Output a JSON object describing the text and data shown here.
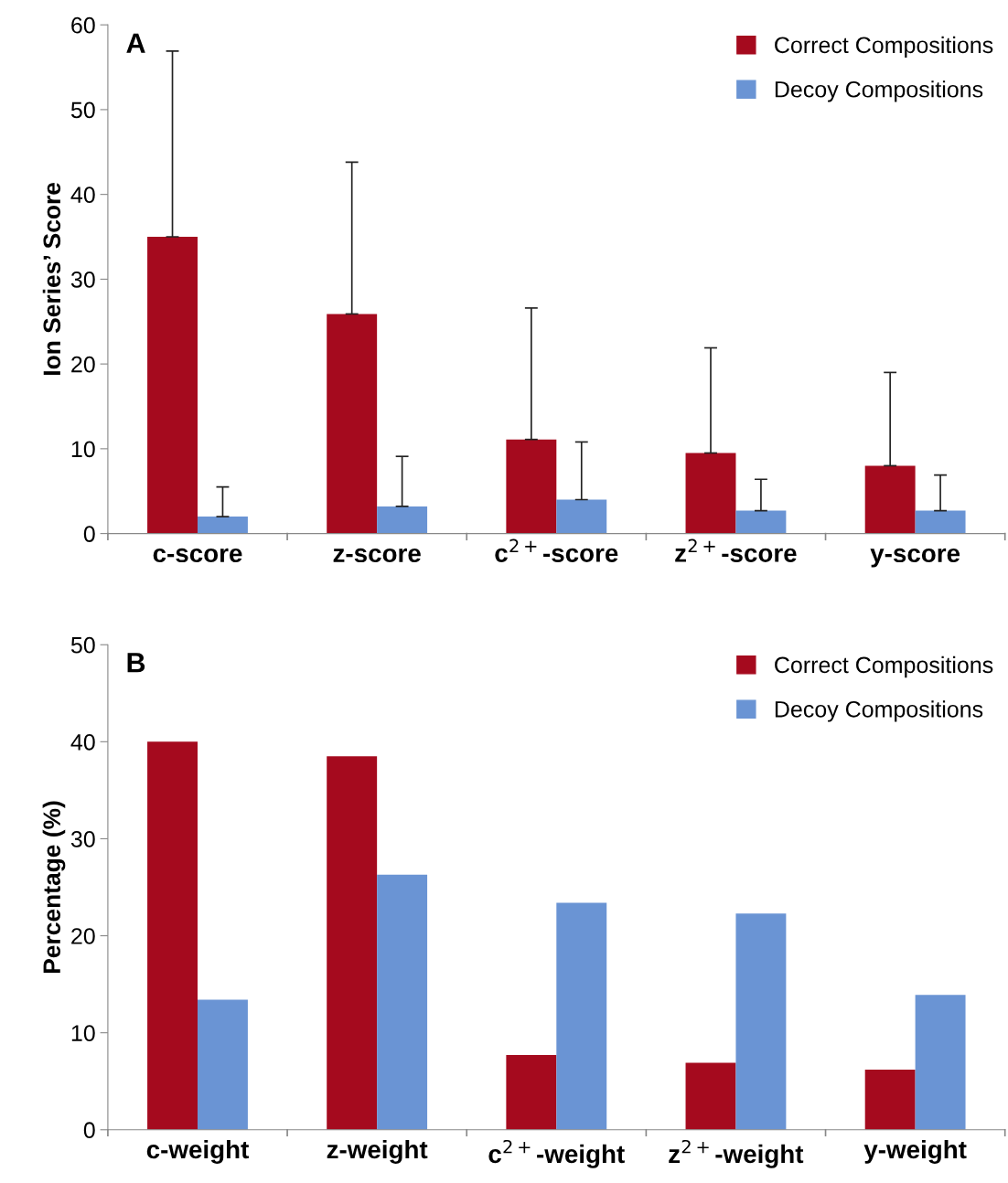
{
  "chart_data": [
    {
      "type": "bar",
      "title": "A",
      "ylabel": "Ion Series’ Score",
      "categories": [
        "c-score",
        "z-score",
        "c$^{2+}$-score",
        "z$^{2+}$-score",
        "y-score"
      ],
      "ylim": [
        0,
        60
      ],
      "yticks": [
        0,
        10,
        20,
        30,
        40,
        50,
        60
      ],
      "grid": false,
      "legend": "top right",
      "series": [
        {
          "name": "Correct Compositions",
          "color": "#a50a1e",
          "values": [
            35,
            25.9,
            11.1,
            9.5,
            8.0
          ],
          "errors": [
            [
              35,
              56.9
            ],
            [
              25.9,
              43.8
            ],
            [
              11.1,
              26.6
            ],
            [
              9.5,
              21.9
            ],
            [
              8.0,
              19.0
            ]
          ]
        },
        {
          "name": "Decoy Compositions",
          "color": "#6a94d4",
          "values": [
            2.0,
            3.2,
            4.0,
            2.7,
            2.7
          ],
          "errors": [
            [
              2.0,
              5.5
            ],
            [
              3.2,
              9.1
            ],
            [
              4.0,
              10.8
            ],
            [
              2.7,
              6.4
            ],
            [
              2.7,
              6.9
            ]
          ]
        }
      ]
    },
    {
      "type": "bar",
      "title": "B",
      "ylabel": "Percentage (%)",
      "categories": [
        "c-weight",
        "z-weight",
        "c$^{2+}$-weight",
        "z$^{2+}$-weight",
        "y-weight"
      ],
      "ylim": [
        0,
        50
      ],
      "yticks": [
        0,
        10,
        20,
        30,
        40,
        50
      ],
      "grid": false,
      "legend": "top right",
      "series": [
        {
          "name": "Correct Compositions",
          "color": "#a50a1e",
          "values": [
            40.0,
            38.5,
            7.7,
            6.9,
            6.2
          ]
        },
        {
          "name": "Decoy Compositions",
          "color": "#6a94d4",
          "values": [
            13.4,
            26.3,
            23.4,
            22.3,
            13.9
          ]
        }
      ]
    }
  ]
}
